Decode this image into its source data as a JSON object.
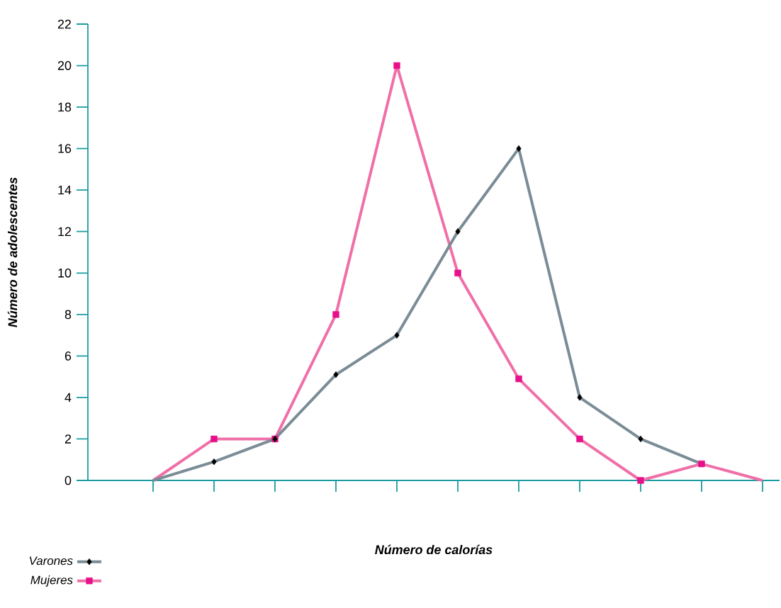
{
  "chart_data": {
    "type": "line",
    "xlabel": "Número de calorías",
    "ylabel": "Número de adolescentes",
    "categories": [
      null,
      null,
      null,
      null,
      null,
      null,
      null,
      null,
      null,
      null,
      null
    ],
    "ylim": [
      0,
      22
    ],
    "yticks": [
      0,
      2,
      4,
      6,
      8,
      10,
      12,
      14,
      16,
      18,
      20,
      22
    ],
    "series": [
      {
        "name": "Varones",
        "color": "#7a8c96",
        "marker": "diamond",
        "values": [
          0,
          0.9,
          2,
          5.1,
          7,
          12,
          16,
          4,
          2,
          0.8,
          null
        ]
      },
      {
        "name": "Mujeres",
        "color": "#f06fa8",
        "marker": "square",
        "values": [
          0,
          2,
          2,
          8,
          20,
          10,
          4.9,
          2,
          0,
          0.8,
          0
        ]
      }
    ],
    "legend": "bottom left",
    "grid": false,
    "tick_labels": "y"
  }
}
